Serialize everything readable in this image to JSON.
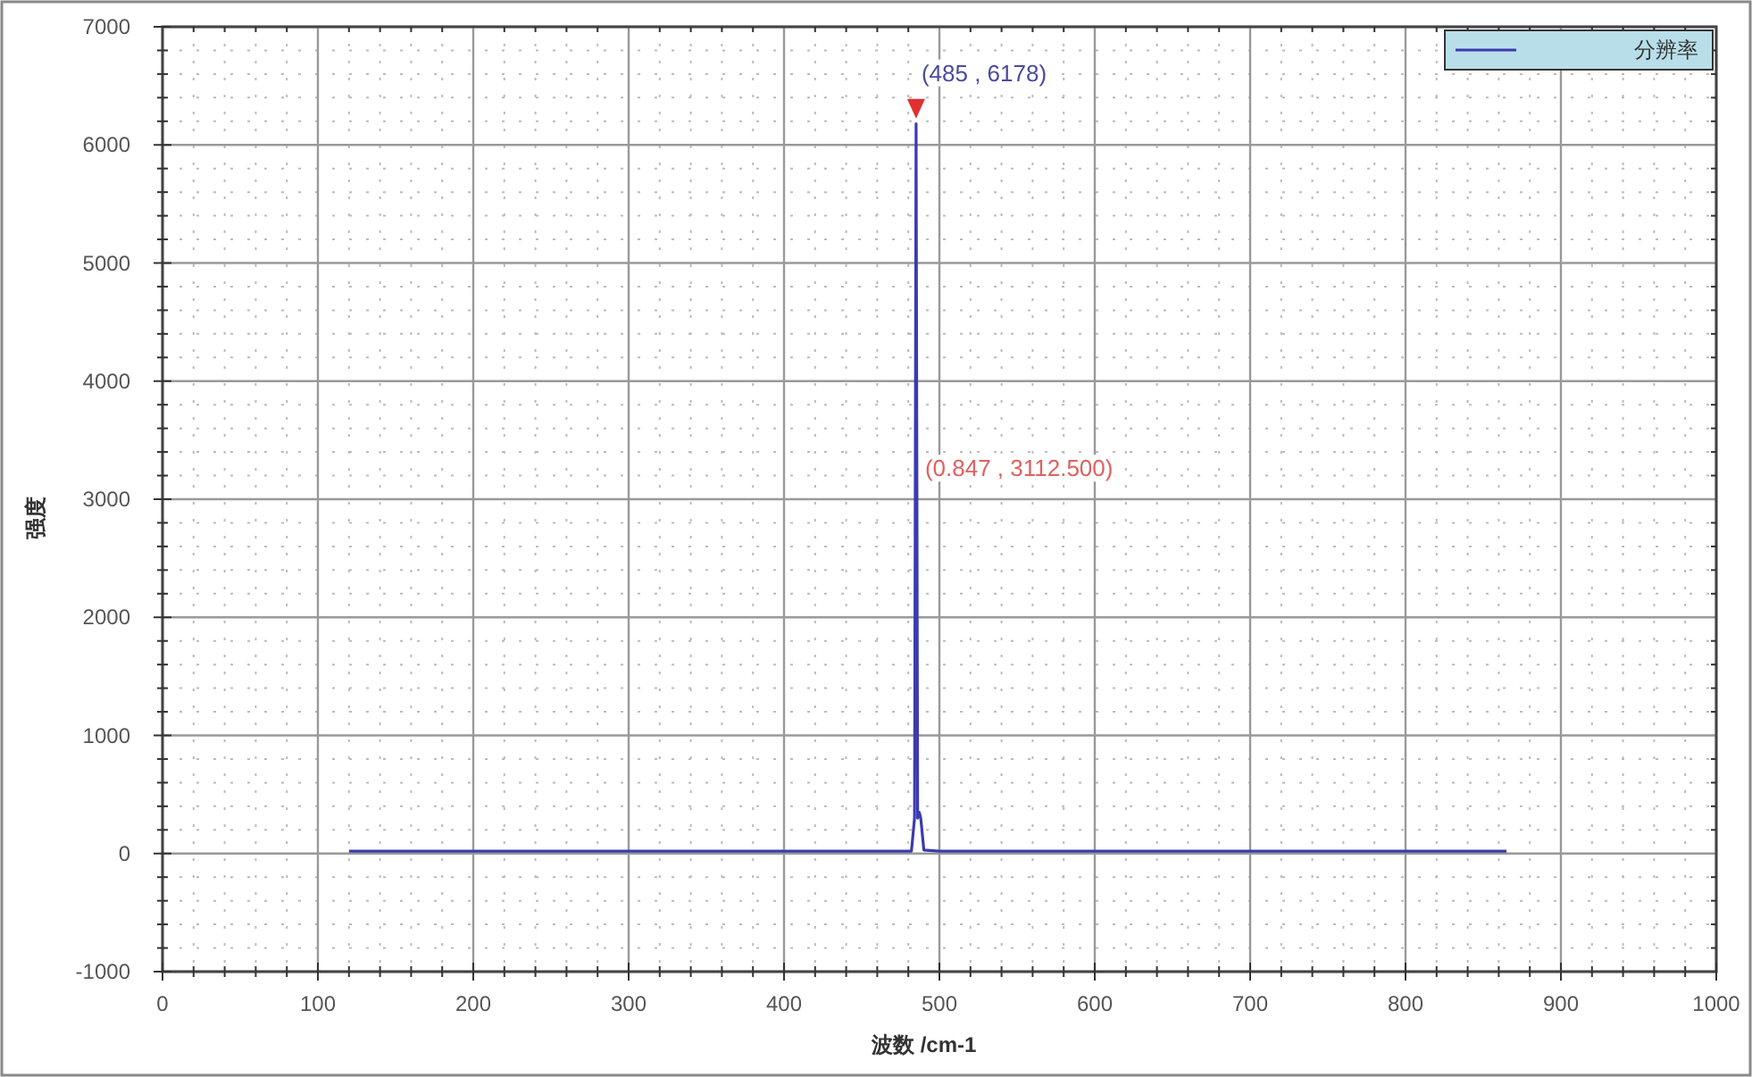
{
  "chart_data": {
    "type": "line",
    "xlabel": "波数 /cm-1",
    "ylabel": "强度",
    "xlim": [
      0,
      1000
    ],
    "xticks": [
      0,
      100,
      200,
      300,
      400,
      500,
      600,
      700,
      800,
      900,
      1000
    ],
    "ylim": [
      -1000,
      7000
    ],
    "yticks": [
      -1000,
      0,
      1000,
      2000,
      3000,
      4000,
      5000,
      6000,
      7000
    ],
    "grid": true,
    "legend": "top right",
    "marker": "none",
    "line_style": "solid",
    "series": [
      {
        "name": "分辨率",
        "color": "#3b3bb0",
        "x": [
          120,
          200,
          300,
          400,
          470,
          482,
          484,
          485,
          486,
          487,
          488,
          490,
          500,
          600,
          700,
          800,
          865
        ],
        "values": [
          20,
          20,
          20,
          20,
          20,
          20,
          300,
          6178,
          300,
          350,
          300,
          30,
          20,
          20,
          20,
          20,
          20
        ]
      }
    ],
    "annotations": [
      {
        "text": "(485 , 6178)",
        "x": 485,
        "y": 6178
      },
      "(0.847 , 3112.500)"
    ]
  }
}
